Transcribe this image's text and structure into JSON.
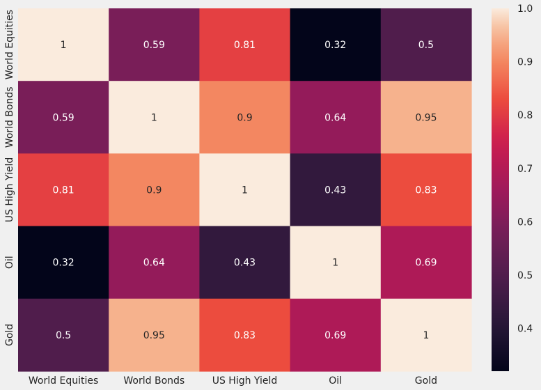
{
  "chart_data": {
    "type": "heatmap",
    "title": "",
    "xlabel": "",
    "ylabel": "",
    "x_categories": [
      "World Equities",
      "World Bonds",
      "US High Yield",
      "Oil",
      "Gold"
    ],
    "y_categories": [
      "World Equities",
      "World Bonds",
      "US High Yield",
      "Oil",
      "Gold"
    ],
    "matrix": [
      [
        1,
        0.59,
        0.81,
        0.32,
        0.5
      ],
      [
        0.59,
        1,
        0.9,
        0.64,
        0.95
      ],
      [
        0.81,
        0.9,
        1,
        0.43,
        0.83
      ],
      [
        0.32,
        0.64,
        0.43,
        1,
        0.69
      ],
      [
        0.5,
        0.95,
        0.83,
        0.69,
        1
      ]
    ],
    "cell_labels": [
      [
        "1",
        "0.59",
        "0.81",
        "0.32",
        "0.5"
      ],
      [
        "0.59",
        "1",
        "0.9",
        "0.64",
        "0.95"
      ],
      [
        "0.81",
        "0.9",
        "1",
        "0.43",
        "0.83"
      ],
      [
        "0.32",
        "0.64",
        "0.43",
        "1",
        "0.69"
      ],
      [
        "0.5",
        "0.95",
        "0.83",
        "0.69",
        "1"
      ]
    ],
    "colorbar": {
      "vmin": 0.32,
      "vmax": 1.0,
      "ticks": [
        0.4,
        0.5,
        0.6,
        0.7,
        0.8,
        0.9,
        1.0
      ],
      "tick_labels": [
        "0.4",
        "0.5",
        "0.6",
        "0.7",
        "0.8",
        "0.9",
        "1.0"
      ]
    },
    "colormap": "rocket",
    "grid": false,
    "legend": "colorbar-right"
  },
  "colors": {
    "background": "#f0f0f0",
    "text_light": "#ffffff",
    "text_dark": "#262626"
  }
}
